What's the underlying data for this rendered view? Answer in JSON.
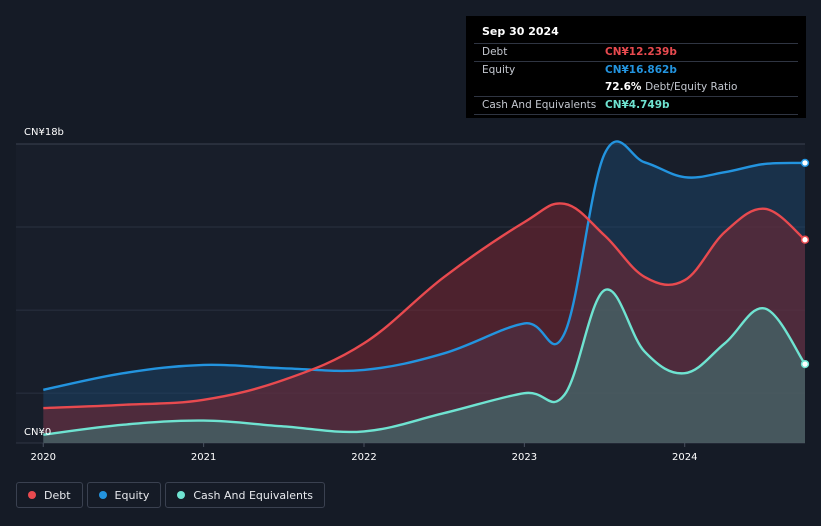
{
  "tooltip": {
    "date": "Sep 30 2024",
    "rows": [
      {
        "label": "Debt",
        "value": "CN¥12.239b",
        "color": "#e84a4f"
      },
      {
        "label": "Equity",
        "value": "CN¥16.862b",
        "color": "#2394df"
      },
      {
        "ratio_value": "72.6%",
        "ratio_label": "Debt/Equity Ratio"
      },
      {
        "label": "Cash And Equivalents",
        "value": "CN¥4.749b",
        "color": "#6fe3d1"
      }
    ]
  },
  "legend": [
    {
      "label": "Debt",
      "color": "#e84a4f"
    },
    {
      "label": "Equity",
      "color": "#2394df"
    },
    {
      "label": "Cash And Equivalents",
      "color": "#6fe3d1"
    }
  ],
  "chart_data": {
    "type": "area",
    "ylim": [
      0,
      18
    ],
    "y_tick_labels": {
      "top": "CN¥18b",
      "bottom": "CN¥0"
    },
    "x_tick_labels": [
      "2020",
      "2021",
      "2022",
      "2023",
      "2024"
    ],
    "x_ticks": [
      2020,
      2021,
      2022,
      2023,
      2024
    ],
    "xlim": [
      2019.83,
      2024.75
    ],
    "grid": true,
    "series": [
      {
        "name": "Debt",
        "color": "#e84a4f",
        "x": [
          2020.0,
          2020.5,
          2021.0,
          2021.5,
          2022.0,
          2022.5,
          2023.0,
          2023.25,
          2023.5,
          2023.75,
          2024.0,
          2024.25,
          2024.5,
          2024.75
        ],
        "values": [
          2.1,
          2.3,
          2.6,
          3.8,
          6.0,
          10.0,
          13.3,
          14.4,
          12.5,
          10.0,
          9.8,
          12.7,
          14.1,
          12.239
        ]
      },
      {
        "name": "Equity",
        "color": "#2394df",
        "x": [
          2020.0,
          2020.5,
          2021.0,
          2021.5,
          2022.0,
          2022.5,
          2023.0,
          2023.25,
          2023.5,
          2023.75,
          2024.0,
          2024.25,
          2024.5,
          2024.75
        ],
        "values": [
          3.2,
          4.2,
          4.7,
          4.5,
          4.4,
          5.4,
          7.2,
          6.6,
          17.4,
          16.9,
          16.0,
          16.3,
          16.8,
          16.862
        ]
      },
      {
        "name": "Cash And Equivalents",
        "color": "#6fe3d1",
        "x": [
          2020.0,
          2020.5,
          2021.0,
          2021.5,
          2022.0,
          2022.5,
          2023.0,
          2023.25,
          2023.5,
          2023.75,
          2024.0,
          2024.25,
          2024.5,
          2024.75
        ],
        "values": [
          0.5,
          1.1,
          1.35,
          1.0,
          0.7,
          1.8,
          3.0,
          2.9,
          9.2,
          5.5,
          4.2,
          6.0,
          8.1,
          4.749
        ]
      }
    ]
  }
}
